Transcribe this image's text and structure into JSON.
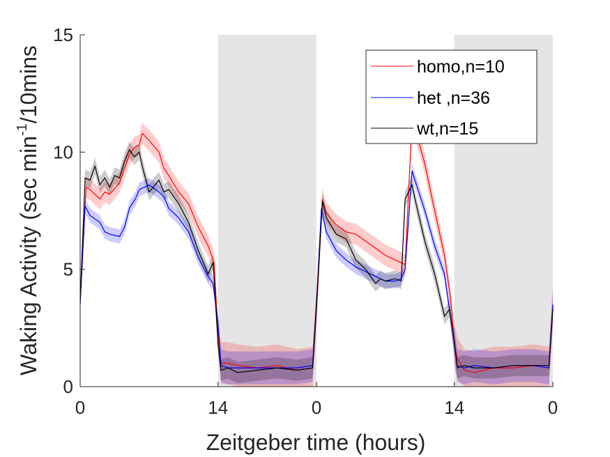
{
  "chart_data": {
    "type": "line",
    "xlabel": "Zeitgeber time (hours)",
    "ylabel": "Waking Activity (sec min",
    "ylabel_sup": "-1",
    "ylabel_suffix": "/10mins",
    "xlim": [
      0,
      48
    ],
    "ylim": [
      0,
      15
    ],
    "x_ticks": [
      0,
      14,
      24,
      38,
      48
    ],
    "x_tick_labels": [
      "0",
      "14",
      "0",
      "14",
      "0"
    ],
    "y_ticks": [
      0,
      5,
      10,
      15
    ],
    "y_tick_labels": [
      "0",
      "5",
      "10",
      "15"
    ],
    "dark_periods": [
      [
        14,
        24
      ],
      [
        38,
        48
      ]
    ],
    "grid": false,
    "legend_position": "top-right",
    "colors": {
      "homo": "#ff0000",
      "het": "#0000ff",
      "wt": "#000000",
      "night_shade": "#e5e5e5"
    },
    "series": [
      {
        "name": "homo,n=10",
        "key": "homo",
        "x": [
          0,
          0.6,
          1,
          2,
          2.5,
          3,
          4,
          5,
          5.5,
          6,
          6.3,
          7,
          8,
          8.5,
          9,
          10,
          11,
          12,
          13,
          13.6,
          14,
          14.3,
          15,
          16,
          18,
          20,
          22,
          23.6,
          24,
          24.6,
          25,
          26,
          27,
          28,
          29,
          30,
          31,
          32,
          32.5,
          33,
          33.7,
          34,
          35,
          36,
          37,
          37.6,
          38,
          38.3,
          39,
          40,
          42,
          44,
          46,
          47.6,
          48
        ],
        "y": [
          3.6,
          8.5,
          8.4,
          8.0,
          8.3,
          8.2,
          8.7,
          9.9,
          10.2,
          10.3,
          10.8,
          10.5,
          10.0,
          9.3,
          9.0,
          8.3,
          7.8,
          6.8,
          6.0,
          5.3,
          2.2,
          1.0,
          1.0,
          0.9,
          0.8,
          0.9,
          0.7,
          0.8,
          3.3,
          8.0,
          7.4,
          6.9,
          6.6,
          6.5,
          6.2,
          5.9,
          5.6,
          5.4,
          5.3,
          5.2,
          11.3,
          11.0,
          9.5,
          7.5,
          5.6,
          3.8,
          1.8,
          1.2,
          0.7,
          0.6,
          0.8,
          0.8,
          0.9,
          0.8,
          3.4
        ]
      },
      {
        "name": "het ,n=36",
        "key": "het",
        "x": [
          0,
          0.5,
          1,
          2,
          2.5,
          3,
          4,
          4.5,
          5,
          5.6,
          6,
          6.5,
          7,
          8,
          8.5,
          9,
          10,
          11,
          12,
          13,
          13.5,
          14,
          14.3,
          15,
          16,
          18,
          20,
          22,
          23.6,
          24,
          24.5,
          25,
          26,
          27,
          28,
          29,
          30,
          30.5,
          31,
          32,
          32.6,
          33,
          33.7,
          34,
          35,
          36,
          37,
          37.5,
          38,
          38.3,
          39,
          40,
          42,
          44,
          46,
          47.6,
          48
        ],
        "y": [
          3.5,
          7.7,
          7.3,
          7.0,
          6.6,
          6.5,
          6.4,
          6.8,
          7.6,
          8.0,
          8.4,
          8.5,
          8.6,
          8.3,
          8.1,
          7.6,
          7.2,
          6.6,
          5.5,
          4.7,
          4.4,
          2.7,
          0.9,
          0.8,
          0.8,
          0.8,
          0.8,
          0.8,
          0.9,
          3.5,
          7.6,
          6.6,
          5.8,
          5.4,
          5.1,
          4.9,
          4.7,
          4.6,
          4.5,
          4.5,
          4.6,
          5.0,
          9.2,
          8.8,
          7.5,
          6.0,
          4.8,
          3.3,
          1.8,
          0.9,
          0.8,
          0.9,
          0.8,
          0.9,
          0.9,
          0.8,
          3.5
        ]
      },
      {
        "name": "wt,n=15",
        "key": "wt",
        "x": [
          0,
          0.5,
          1,
          1.5,
          2,
          2.5,
          3,
          3.5,
          4,
          4.5,
          5,
          5.5,
          6,
          6.3,
          7,
          8,
          8.5,
          9,
          10,
          11,
          12,
          13,
          13.5,
          14,
          14.3,
          15,
          16,
          18,
          20,
          22,
          23.6,
          24,
          24.6,
          25,
          26,
          27,
          28,
          29,
          30,
          30.5,
          31,
          32,
          32.6,
          33,
          33.7,
          34,
          35,
          36,
          37,
          37.5,
          38,
          38.3,
          39,
          40,
          42,
          44,
          46,
          47.6,
          48
        ],
        "y": [
          3.6,
          8.9,
          8.8,
          9.4,
          8.6,
          8.9,
          8.5,
          9.0,
          8.9,
          9.6,
          10.1,
          9.8,
          10.0,
          9.4,
          8.3,
          8.8,
          8.3,
          8.4,
          7.8,
          7.0,
          5.8,
          4.8,
          5.3,
          1.8,
          0.7,
          0.8,
          0.6,
          0.7,
          0.8,
          0.7,
          0.8,
          3.5,
          7.9,
          7.2,
          6.5,
          6.3,
          5.4,
          5.0,
          4.4,
          4.6,
          4.5,
          4.6,
          4.5,
          8.0,
          8.6,
          8.0,
          6.2,
          4.8,
          3.0,
          3.3,
          1.9,
          0.8,
          0.9,
          0.8,
          0.8,
          0.9,
          0.9,
          0.9,
          3.3
        ]
      }
    ],
    "error_bands": [
      {
        "key": "homo",
        "half_width_day": 0.45,
        "half_width_night": 0.9,
        "opacity": 0.2
      },
      {
        "key": "het",
        "half_width_day": 0.3,
        "half_width_night": 0.7,
        "opacity": 0.2
      },
      {
        "key": "wt",
        "half_width_day": 0.35,
        "half_width_night": 0.45,
        "opacity": 0.2
      }
    ]
  }
}
